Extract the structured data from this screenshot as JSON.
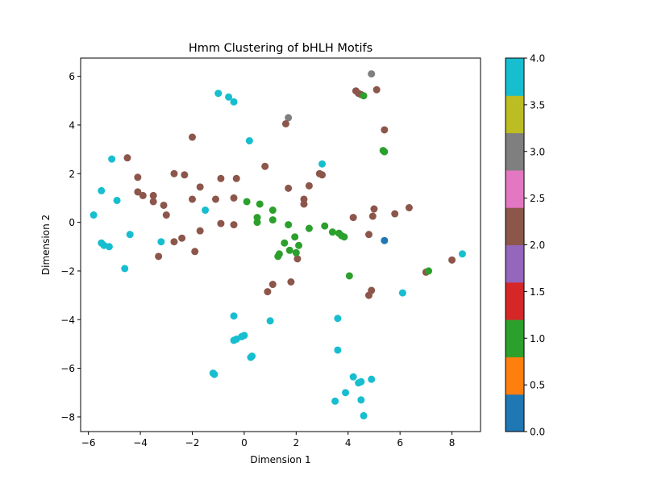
{
  "chart_data": {
    "type": "scatter",
    "title": "Hmm Clustering of bHLH Motifs",
    "xlabel": "Dimension 1",
    "ylabel": "Dimension 2",
    "xlim": [
      -6.3,
      9.1
    ],
    "ylim": [
      -8.6,
      6.75
    ],
    "xticks": [
      -6,
      -4,
      -2,
      0,
      2,
      4,
      6,
      8
    ],
    "yticks": [
      -8,
      -6,
      -4,
      -2,
      0,
      2,
      4,
      6
    ],
    "grid": false,
    "colorbar": {
      "range": [
        0.0,
        4.0
      ],
      "ticks": [
        "0.0",
        "0.5",
        "1.0",
        "1.5",
        "2.0",
        "2.5",
        "3.0",
        "3.5",
        "4.0"
      ],
      "colors": [
        "#1f77b4",
        "#ff7f0e",
        "#2ca02c",
        "#d62728",
        "#9467bd",
        "#8c564b",
        "#e377c2",
        "#7f7f7f",
        "#bcbd22",
        "#17becf"
      ]
    },
    "points": [
      {
        "x": -1.0,
        "y": 5.3,
        "c": 4
      },
      {
        "x": -0.6,
        "y": 5.15,
        "c": 4
      },
      {
        "x": -0.4,
        "y": 4.95,
        "c": 4
      },
      {
        "x": 0.2,
        "y": 3.35,
        "c": 4
      },
      {
        "x": -5.1,
        "y": 2.6,
        "c": 4
      },
      {
        "x": -5.5,
        "y": 1.3,
        "c": 4
      },
      {
        "x": -4.9,
        "y": 0.9,
        "c": 4
      },
      {
        "x": -5.8,
        "y": 0.3,
        "c": 4
      },
      {
        "x": -1.5,
        "y": 0.5,
        "c": 4
      },
      {
        "x": -4.4,
        "y": -0.5,
        "c": 4
      },
      {
        "x": -5.5,
        "y": -0.85,
        "c": 4
      },
      {
        "x": -5.4,
        "y": -0.95,
        "c": 4
      },
      {
        "x": -5.2,
        "y": -1.0,
        "c": 4
      },
      {
        "x": -3.2,
        "y": -0.8,
        "c": 4
      },
      {
        "x": -4.6,
        "y": -1.9,
        "c": 4
      },
      {
        "x": 3.0,
        "y": 2.4,
        "c": 4
      },
      {
        "x": 8.4,
        "y": -1.3,
        "c": 4
      },
      {
        "x": 6.1,
        "y": -2.9,
        "c": 4
      },
      {
        "x": -0.4,
        "y": -3.85,
        "c": 4
      },
      {
        "x": 1.0,
        "y": -4.05,
        "c": 4
      },
      {
        "x": 3.6,
        "y": -3.95,
        "c": 4
      },
      {
        "x": 0.0,
        "y": -4.65,
        "c": 4
      },
      {
        "x": -0.1,
        "y": -4.7,
        "c": 4
      },
      {
        "x": -0.3,
        "y": -4.8,
        "c": 4
      },
      {
        "x": -0.4,
        "y": -4.85,
        "c": 4
      },
      {
        "x": 3.6,
        "y": -5.25,
        "c": 4
      },
      {
        "x": 0.3,
        "y": -5.5,
        "c": 4
      },
      {
        "x": 0.25,
        "y": -5.55,
        "c": 4
      },
      {
        "x": -1.2,
        "y": -6.2,
        "c": 4
      },
      {
        "x": -1.15,
        "y": -6.25,
        "c": 4
      },
      {
        "x": 4.2,
        "y": -6.35,
        "c": 4
      },
      {
        "x": 4.5,
        "y": -6.55,
        "c": 4
      },
      {
        "x": 4.4,
        "y": -6.6,
        "c": 4
      },
      {
        "x": 4.9,
        "y": -6.45,
        "c": 4
      },
      {
        "x": 3.9,
        "y": -7.0,
        "c": 4
      },
      {
        "x": 4.5,
        "y": -7.3,
        "c": 4
      },
      {
        "x": 3.5,
        "y": -7.35,
        "c": 4
      },
      {
        "x": 4.6,
        "y": -7.95,
        "c": 4
      },
      {
        "x": 4.9,
        "y": 6.1,
        "c": 3
      },
      {
        "x": 1.7,
        "y": 4.3,
        "c": 3
      },
      {
        "x": 4.3,
        "y": 5.4,
        "c": 2
      },
      {
        "x": 4.4,
        "y": 5.3,
        "c": 2
      },
      {
        "x": 4.5,
        "y": 5.25,
        "c": 2
      },
      {
        "x": 5.1,
        "y": 5.45,
        "c": 2
      },
      {
        "x": 1.6,
        "y": 4.05,
        "c": 2
      },
      {
        "x": 5.4,
        "y": 3.8,
        "c": 2
      },
      {
        "x": -2.0,
        "y": 3.5,
        "c": 2
      },
      {
        "x": -4.5,
        "y": 2.65,
        "c": 2
      },
      {
        "x": 0.8,
        "y": 2.3,
        "c": 2
      },
      {
        "x": -2.7,
        "y": 2.0,
        "c": 2
      },
      {
        "x": -2.3,
        "y": 1.95,
        "c": 2
      },
      {
        "x": 2.9,
        "y": 2.0,
        "c": 2
      },
      {
        "x": 3.0,
        "y": 1.95,
        "c": 2
      },
      {
        "x": -4.1,
        "y": 1.85,
        "c": 2
      },
      {
        "x": -0.9,
        "y": 1.8,
        "c": 2
      },
      {
        "x": -0.3,
        "y": 1.8,
        "c": 2
      },
      {
        "x": -1.7,
        "y": 1.45,
        "c": 2
      },
      {
        "x": 2.5,
        "y": 1.5,
        "c": 2
      },
      {
        "x": 1.7,
        "y": 1.4,
        "c": 2
      },
      {
        "x": -4.1,
        "y": 1.25,
        "c": 2
      },
      {
        "x": -3.9,
        "y": 1.1,
        "c": 2
      },
      {
        "x": -3.5,
        "y": 1.1,
        "c": 2
      },
      {
        "x": -2.0,
        "y": 0.95,
        "c": 2
      },
      {
        "x": -1.1,
        "y": 0.95,
        "c": 2
      },
      {
        "x": -0.4,
        "y": 1.0,
        "c": 2
      },
      {
        "x": 2.3,
        "y": 0.95,
        "c": 2
      },
      {
        "x": -3.5,
        "y": 0.85,
        "c": 2
      },
      {
        "x": 2.3,
        "y": 0.75,
        "c": 2
      },
      {
        "x": -3.1,
        "y": 0.7,
        "c": 2
      },
      {
        "x": 5.0,
        "y": 0.55,
        "c": 2
      },
      {
        "x": 6.35,
        "y": 0.6,
        "c": 2
      },
      {
        "x": 5.8,
        "y": 0.35,
        "c": 2
      },
      {
        "x": -3.0,
        "y": 0.3,
        "c": 2
      },
      {
        "x": 4.95,
        "y": 0.25,
        "c": 2
      },
      {
        "x": 4.2,
        "y": 0.2,
        "c": 2
      },
      {
        "x": -0.9,
        "y": -0.05,
        "c": 2
      },
      {
        "x": -0.4,
        "y": -0.1,
        "c": 2
      },
      {
        "x": -1.7,
        "y": -0.35,
        "c": 2
      },
      {
        "x": 4.8,
        "y": -0.5,
        "c": 2
      },
      {
        "x": -2.4,
        "y": -0.65,
        "c": 2
      },
      {
        "x": -2.7,
        "y": -0.8,
        "c": 2
      },
      {
        "x": -1.9,
        "y": -1.2,
        "c": 2
      },
      {
        "x": -3.3,
        "y": -1.4,
        "c": 2
      },
      {
        "x": 2.05,
        "y": -1.5,
        "c": 2
      },
      {
        "x": 8.0,
        "y": -1.55,
        "c": 2
      },
      {
        "x": 7.0,
        "y": -2.05,
        "c": 2
      },
      {
        "x": 1.8,
        "y": -2.45,
        "c": 2
      },
      {
        "x": 1.1,
        "y": -2.55,
        "c": 2
      },
      {
        "x": 0.9,
        "y": -2.85,
        "c": 2
      },
      {
        "x": 4.9,
        "y": -2.8,
        "c": 2
      },
      {
        "x": 4.8,
        "y": -3.0,
        "c": 2
      },
      {
        "x": 4.6,
        "y": 5.2,
        "c": 1
      },
      {
        "x": 5.35,
        "y": 2.95,
        "c": 1
      },
      {
        "x": 5.4,
        "y": 2.9,
        "c": 1
      },
      {
        "x": 0.1,
        "y": 0.85,
        "c": 1
      },
      {
        "x": 0.6,
        "y": 0.75,
        "c": 1
      },
      {
        "x": 1.1,
        "y": 0.5,
        "c": 1
      },
      {
        "x": 0.5,
        "y": 0.2,
        "c": 1
      },
      {
        "x": 1.1,
        "y": 0.1,
        "c": 1
      },
      {
        "x": 0.5,
        "y": 0.0,
        "c": 1
      },
      {
        "x": 1.7,
        "y": -0.1,
        "c": 1
      },
      {
        "x": 3.1,
        "y": -0.15,
        "c": 1
      },
      {
        "x": 2.5,
        "y": -0.25,
        "c": 1
      },
      {
        "x": 3.4,
        "y": -0.4,
        "c": 1
      },
      {
        "x": 3.65,
        "y": -0.45,
        "c": 1
      },
      {
        "x": 3.75,
        "y": -0.55,
        "c": 1
      },
      {
        "x": 3.85,
        "y": -0.6,
        "c": 1
      },
      {
        "x": 1.95,
        "y": -0.6,
        "c": 1
      },
      {
        "x": 1.55,
        "y": -0.85,
        "c": 1
      },
      {
        "x": 2.1,
        "y": -0.95,
        "c": 1
      },
      {
        "x": 1.75,
        "y": -1.15,
        "c": 1
      },
      {
        "x": 2.0,
        "y": -1.25,
        "c": 1
      },
      {
        "x": 1.35,
        "y": -1.3,
        "c": 1
      },
      {
        "x": 1.3,
        "y": -1.4,
        "c": 1
      },
      {
        "x": 4.05,
        "y": -2.2,
        "c": 1
      },
      {
        "x": 7.1,
        "y": -2.0,
        "c": 1
      },
      {
        "x": 5.4,
        "y": -0.75,
        "c": 0
      }
    ]
  }
}
